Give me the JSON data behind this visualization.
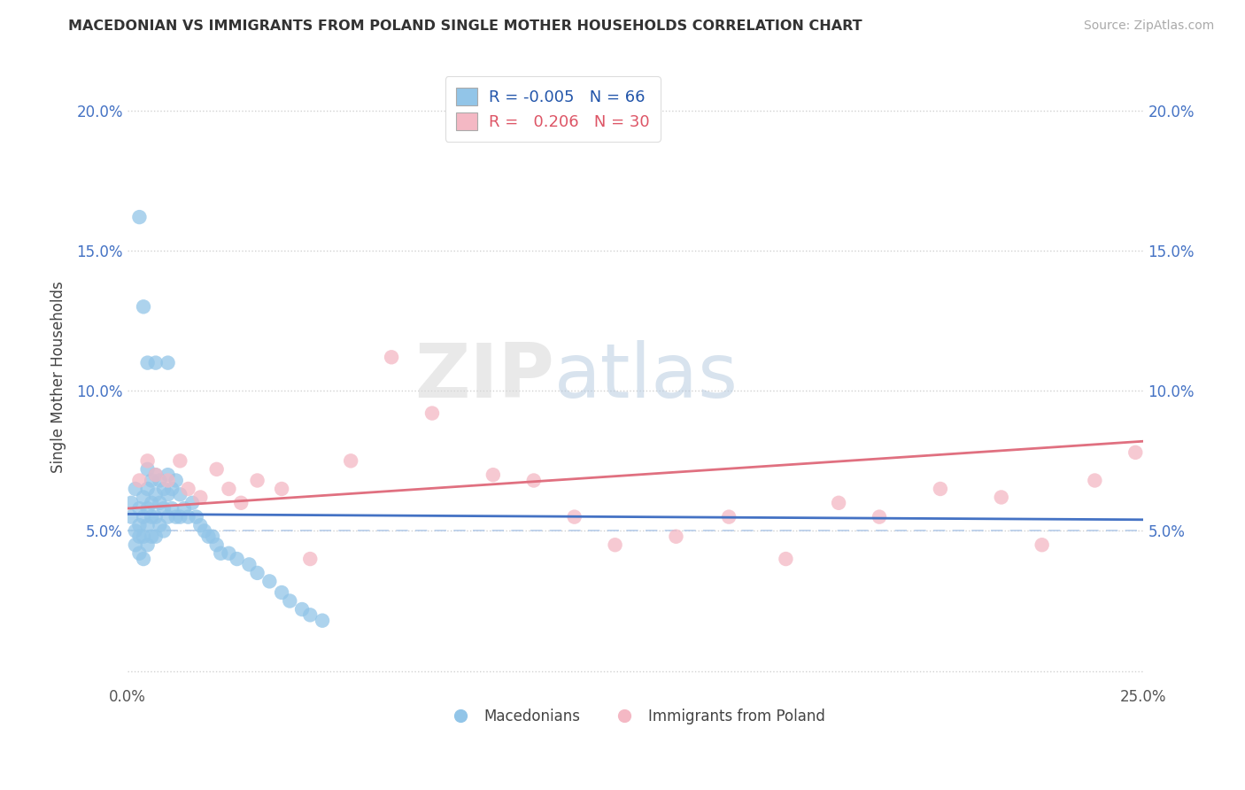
{
  "title": "MACEDONIAN VS IMMIGRANTS FROM POLAND SINGLE MOTHER HOUSEHOLDS CORRELATION CHART",
  "source": "Source: ZipAtlas.com",
  "ylabel": "Single Mother Households",
  "xlim": [
    0.0,
    0.25
  ],
  "ylim": [
    -0.005,
    0.215
  ],
  "yticks": [
    0.0,
    0.05,
    0.1,
    0.15,
    0.2
  ],
  "ytick_labels": [
    "",
    "5.0%",
    "10.0%",
    "15.0%",
    "20.0%"
  ],
  "xticks": [
    0.0,
    0.05,
    0.1,
    0.15,
    0.2,
    0.25
  ],
  "xtick_labels": [
    "0.0%",
    "",
    "",
    "",
    "",
    "25.0%"
  ],
  "legend_R1": "-0.005",
  "legend_N1": "66",
  "legend_R2": "0.206",
  "legend_N2": "30",
  "color_macedonian": "#92c5e8",
  "color_poland": "#f4b8c4",
  "trendline_color_macedonian": "#4472c4",
  "trendline_color_poland": "#e07080",
  "ref_line_color": "#b0c8e8",
  "background_color": "#ffffff",
  "macedonian_x": [
    0.001,
    0.001,
    0.002,
    0.002,
    0.002,
    0.003,
    0.003,
    0.003,
    0.003,
    0.004,
    0.004,
    0.004,
    0.004,
    0.005,
    0.005,
    0.005,
    0.005,
    0.005,
    0.006,
    0.006,
    0.006,
    0.006,
    0.007,
    0.007,
    0.007,
    0.007,
    0.008,
    0.008,
    0.008,
    0.009,
    0.009,
    0.009,
    0.01,
    0.01,
    0.01,
    0.011,
    0.011,
    0.012,
    0.012,
    0.013,
    0.013,
    0.014,
    0.015,
    0.016,
    0.017,
    0.018,
    0.019,
    0.02,
    0.021,
    0.022,
    0.023,
    0.025,
    0.027,
    0.03,
    0.032,
    0.035,
    0.038,
    0.04,
    0.043,
    0.045,
    0.048,
    0.003,
    0.004,
    0.005,
    0.007,
    0.01
  ],
  "macedonian_y": [
    0.06,
    0.055,
    0.065,
    0.05,
    0.045,
    0.058,
    0.052,
    0.048,
    0.042,
    0.062,
    0.055,
    0.048,
    0.04,
    0.072,
    0.065,
    0.058,
    0.052,
    0.045,
    0.068,
    0.06,
    0.055,
    0.048,
    0.07,
    0.063,
    0.055,
    0.048,
    0.068,
    0.06,
    0.052,
    0.065,
    0.058,
    0.05,
    0.07,
    0.063,
    0.055,
    0.065,
    0.058,
    0.068,
    0.055,
    0.063,
    0.055,
    0.058,
    0.055,
    0.06,
    0.055,
    0.052,
    0.05,
    0.048,
    0.048,
    0.045,
    0.042,
    0.042,
    0.04,
    0.038,
    0.035,
    0.032,
    0.028,
    0.025,
    0.022,
    0.02,
    0.018,
    0.162,
    0.13,
    0.11,
    0.11,
    0.11
  ],
  "poland_x": [
    0.003,
    0.005,
    0.007,
    0.01,
    0.013,
    0.015,
    0.018,
    0.022,
    0.025,
    0.028,
    0.032,
    0.038,
    0.045,
    0.055,
    0.065,
    0.075,
    0.09,
    0.1,
    0.11,
    0.12,
    0.135,
    0.148,
    0.162,
    0.175,
    0.185,
    0.2,
    0.215,
    0.225,
    0.238,
    0.248
  ],
  "poland_y": [
    0.068,
    0.075,
    0.07,
    0.068,
    0.075,
    0.065,
    0.062,
    0.072,
    0.065,
    0.06,
    0.068,
    0.065,
    0.04,
    0.075,
    0.112,
    0.092,
    0.07,
    0.068,
    0.055,
    0.045,
    0.048,
    0.055,
    0.04,
    0.06,
    0.055,
    0.065,
    0.062,
    0.045,
    0.068,
    0.078
  ],
  "mac_trend_x": [
    0.0,
    0.25
  ],
  "mac_trend_y": [
    0.056,
    0.054
  ],
  "pol_trend_x": [
    0.0,
    0.25
  ],
  "pol_trend_y": [
    0.058,
    0.082
  ]
}
